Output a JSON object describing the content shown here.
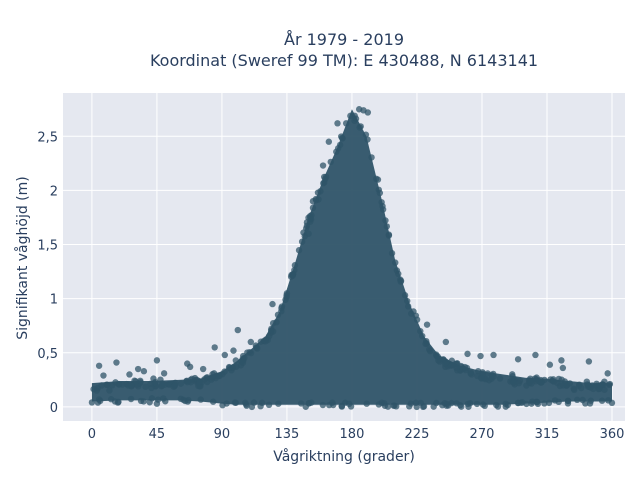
{
  "chart_data": {
    "type": "scatter",
    "title_line1": "År 1979 - 2019",
    "title_line2": "Koordinat (Sweref 99 TM): E 430488, N 6143141",
    "xlabel": "Vågriktning (grader)",
    "ylabel": "Signifikant våghöjd (m)",
    "xlim": [
      -20,
      369
    ],
    "ylim": [
      -0.13,
      2.9
    ],
    "xticks": [
      0,
      45,
      90,
      135,
      180,
      225,
      270,
      315,
      360
    ],
    "xtick_labels": [
      "0",
      "45",
      "90",
      "135",
      "180",
      "225",
      "270",
      "315",
      "360"
    ],
    "yticks": [
      0,
      0.5,
      1,
      1.5,
      2,
      2.5
    ],
    "ytick_labels": [
      "0",
      "0,5",
      "1",
      "1,5",
      "2",
      "2,5"
    ],
    "grid": true,
    "colors": {
      "marker": "#2f5468",
      "plot_background": "#e5e8f0",
      "grid": "#ffffff",
      "text": "#2a3f5f"
    },
    "envelope": {
      "direction": [
        0,
        20,
        40,
        60,
        75,
        90,
        100,
        110,
        120,
        130,
        140,
        150,
        160,
        170,
        180,
        190,
        200,
        210,
        220,
        230,
        240,
        255,
        270,
        285,
        300,
        315,
        330,
        345,
        360
      ],
      "upper_height": [
        0.22,
        0.24,
        0.24,
        0.25,
        0.26,
        0.33,
        0.42,
        0.53,
        0.65,
        0.88,
        1.3,
        1.75,
        2.1,
        2.4,
        2.75,
        2.5,
        1.95,
        1.35,
        0.95,
        0.65,
        0.48,
        0.38,
        0.33,
        0.3,
        0.27,
        0.26,
        0.24,
        0.22,
        0.22
      ],
      "lower_height": [
        0.05,
        0.06,
        0.06,
        0.06,
        0.05,
        0.03,
        0.02,
        0.02,
        0.02,
        0.02,
        0.02,
        0.02,
        0.02,
        0.02,
        0.02,
        0.02,
        0.02,
        0.02,
        0.02,
        0.02,
        0.02,
        0.02,
        0.02,
        0.02,
        0.03,
        0.04,
        0.05,
        0.05,
        0.05
      ]
    },
    "outliers": [
      {
        "x": 5,
        "y": 0.38
      },
      {
        "x": 8,
        "y": 0.29
      },
      {
        "x": 17,
        "y": 0.41
      },
      {
        "x": 26,
        "y": 0.3
      },
      {
        "x": 32,
        "y": 0.35
      },
      {
        "x": 36,
        "y": 0.33
      },
      {
        "x": 45,
        "y": 0.43
      },
      {
        "x": 50,
        "y": 0.31
      },
      {
        "x": 66,
        "y": 0.4
      },
      {
        "x": 68,
        "y": 0.37
      },
      {
        "x": 77,
        "y": 0.35
      },
      {
        "x": 85,
        "y": 0.55
      },
      {
        "x": 92,
        "y": 0.48
      },
      {
        "x": 98,
        "y": 0.52
      },
      {
        "x": 101,
        "y": 0.71
      },
      {
        "x": 45,
        "y": 0.03
      },
      {
        "x": 18,
        "y": 0.04
      },
      {
        "x": 232,
        "y": 0.76
      },
      {
        "x": 245,
        "y": 0.6
      },
      {
        "x": 260,
        "y": 0.49
      },
      {
        "x": 269,
        "y": 0.47
      },
      {
        "x": 278,
        "y": 0.48
      },
      {
        "x": 295,
        "y": 0.44
      },
      {
        "x": 307,
        "y": 0.48
      },
      {
        "x": 317,
        "y": 0.39
      },
      {
        "x": 325,
        "y": 0.43
      },
      {
        "x": 326,
        "y": 0.36
      },
      {
        "x": 344,
        "y": 0.42
      },
      {
        "x": 357,
        "y": 0.31
      },
      {
        "x": 160,
        "y": 2.23
      },
      {
        "x": 170,
        "y": 2.62
      },
      {
        "x": 176,
        "y": 2.62
      },
      {
        "x": 185,
        "y": 2.75
      },
      {
        "x": 188,
        "y": 2.74
      },
      {
        "x": 191,
        "y": 2.72
      },
      {
        "x": 164,
        "y": 2.45
      },
      {
        "x": 150,
        "y": 1.6
      },
      {
        "x": 153,
        "y": 1.9
      },
      {
        "x": 198,
        "y": 2.1
      },
      {
        "x": 135,
        "y": 1.05
      },
      {
        "x": 125,
        "y": 0.95
      },
      {
        "x": 110,
        "y": 0.6
      }
    ]
  }
}
